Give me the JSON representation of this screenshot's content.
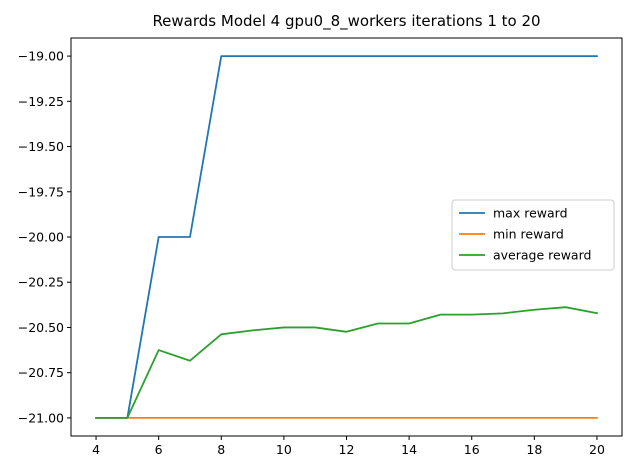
{
  "chart_data": {
    "type": "line",
    "title": "Rewards Model 4 gpu0_8_workers iterations 1 to 20",
    "xlabel": "",
    "ylabel": "",
    "x": [
      4,
      5,
      6,
      7,
      8,
      9,
      10,
      11,
      12,
      13,
      14,
      15,
      16,
      17,
      18,
      19,
      20
    ],
    "xlim": [
      3.2,
      20.8
    ],
    "ylim": [
      -21.1,
      -18.9
    ],
    "xticks": [
      4,
      6,
      8,
      10,
      12,
      14,
      16,
      18,
      20
    ],
    "xtick_labels": [
      "4",
      "6",
      "8",
      "10",
      "12",
      "14",
      "16",
      "18",
      "20"
    ],
    "yticks": [
      -21.0,
      -20.75,
      -20.5,
      -20.25,
      -20.0,
      -19.75,
      -19.5,
      -19.25,
      -19.0
    ],
    "ytick_labels": [
      "−21.00",
      "−20.75",
      "−20.50",
      "−20.25",
      "−20.00",
      "−19.75",
      "−19.50",
      "−19.25",
      "−19.00"
    ],
    "grid": false,
    "legend_position": "center-right",
    "series": [
      {
        "name": "max reward",
        "color": "#1f77b4",
        "values": [
          -21,
          -21,
          -20,
          -20,
          -19,
          -19,
          -19,
          -19,
          -19,
          -19,
          -19,
          -19,
          -19,
          -19,
          -19,
          -19,
          -19
        ]
      },
      {
        "name": "min reward",
        "color": "#ff7f0e",
        "values": [
          -21,
          -21,
          -21,
          -21,
          -21,
          -21,
          -21,
          -21,
          -21,
          -21,
          -21,
          -21,
          -21,
          -21,
          -21,
          -21,
          -21
        ]
      },
      {
        "name": "average reward",
        "color": "#2ca02c",
        "values": [
          -21,
          -21,
          -20.625,
          -20.684,
          -20.538,
          -20.516,
          -20.5,
          -20.5,
          -20.524,
          -20.478,
          -20.478,
          -20.429,
          -20.429,
          -20.422,
          -20.402,
          -20.388,
          -20.421
        ]
      }
    ]
  }
}
